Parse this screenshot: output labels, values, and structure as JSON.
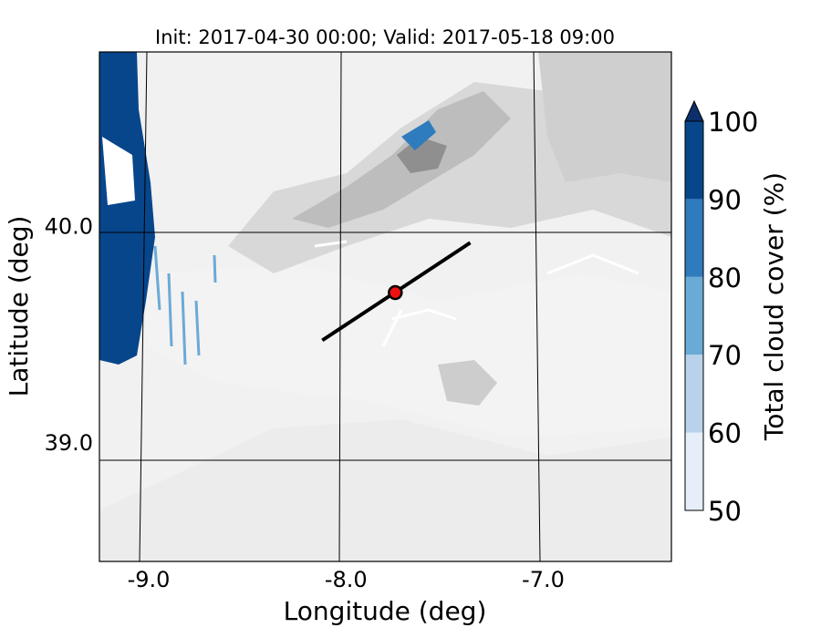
{
  "title": "Init: 2017-04-30 00:00; Valid: 2017-05-18 09:00",
  "axes": {
    "xlabel": "Longitude (deg)",
    "ylabel": "Latitude (deg)",
    "x_ticks": [
      {
        "value": -9.0,
        "label": "-9.0"
      },
      {
        "value": -8.0,
        "label": "-8.0"
      },
      {
        "value": -7.0,
        "label": "-7.0"
      }
    ],
    "y_ticks": [
      {
        "value": 40.0,
        "label": "40.0"
      },
      {
        "value": 39.0,
        "label": "39.0"
      }
    ],
    "x_range": [
      -9.25,
      -6.35
    ],
    "y_range": [
      38.45,
      40.8
    ]
  },
  "map": {
    "background_fill": "grayscale terrain contours",
    "graticule": true,
    "cross_section_line": {
      "start": {
        "lon": -8.12,
        "lat": 39.47
      },
      "end": {
        "lon": -7.37,
        "lat": 39.92
      }
    },
    "marker": {
      "lon": -7.75,
      "lat": 39.69,
      "color": "#ee1111"
    }
  },
  "colorbar": {
    "label": "Total cloud cover (%)",
    "ticks": [
      "50",
      "60",
      "70",
      "80",
      "90",
      "100"
    ],
    "colors": [
      "#e6eff9",
      "#b7d2ea",
      "#6aaad6",
      "#2e7bbd",
      "#08468c"
    ],
    "extend_color": "#0c2f6b"
  }
}
